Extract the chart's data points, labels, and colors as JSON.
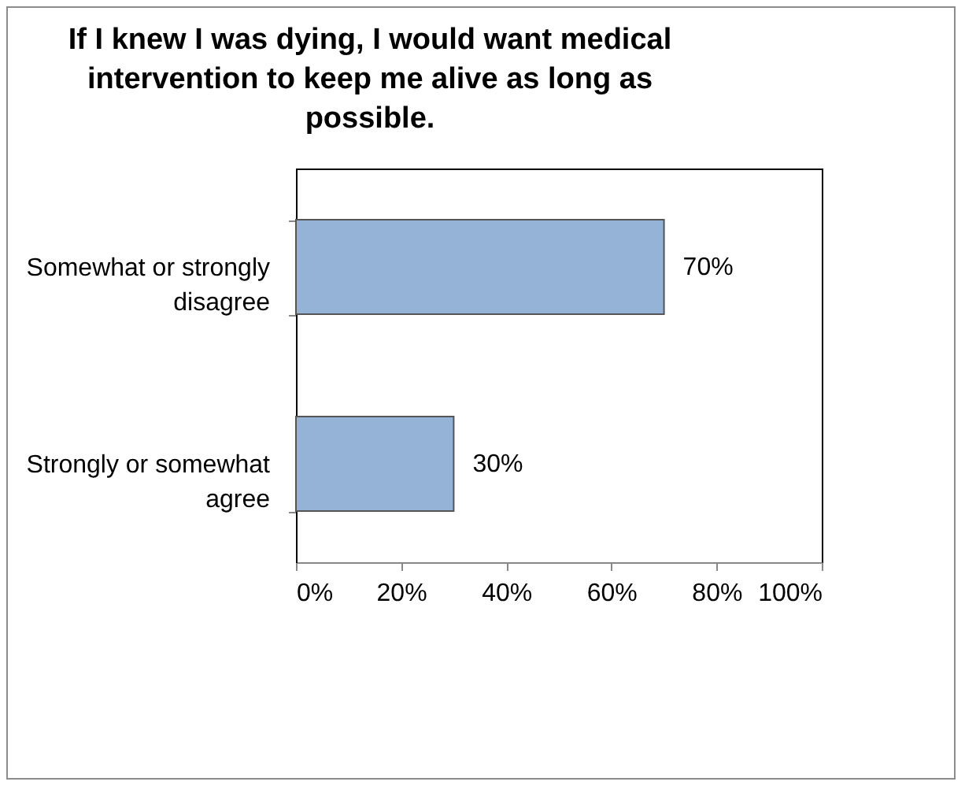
{
  "chart_data": {
    "type": "bar",
    "orientation": "horizontal",
    "title": "If I knew I was dying, I would want medical intervention to keep me alive as long as possible.",
    "categories": [
      "Somewhat or strongly disagree",
      "Strongly or somewhat agree"
    ],
    "values": [
      70,
      30
    ],
    "value_labels": [
      "70%",
      "30%"
    ],
    "color": "#95b3d7",
    "xlim": [
      0,
      100
    ],
    "xticks": [
      {
        "value": 0,
        "label": "0%"
      },
      {
        "value": 20,
        "label": "20%"
      },
      {
        "value": 40,
        "label": "40%"
      },
      {
        "value": 60,
        "label": "60%"
      },
      {
        "value": 80,
        "label": "80%"
      },
      {
        "value": 100,
        "label": "100%"
      }
    ],
    "grid": false
  }
}
